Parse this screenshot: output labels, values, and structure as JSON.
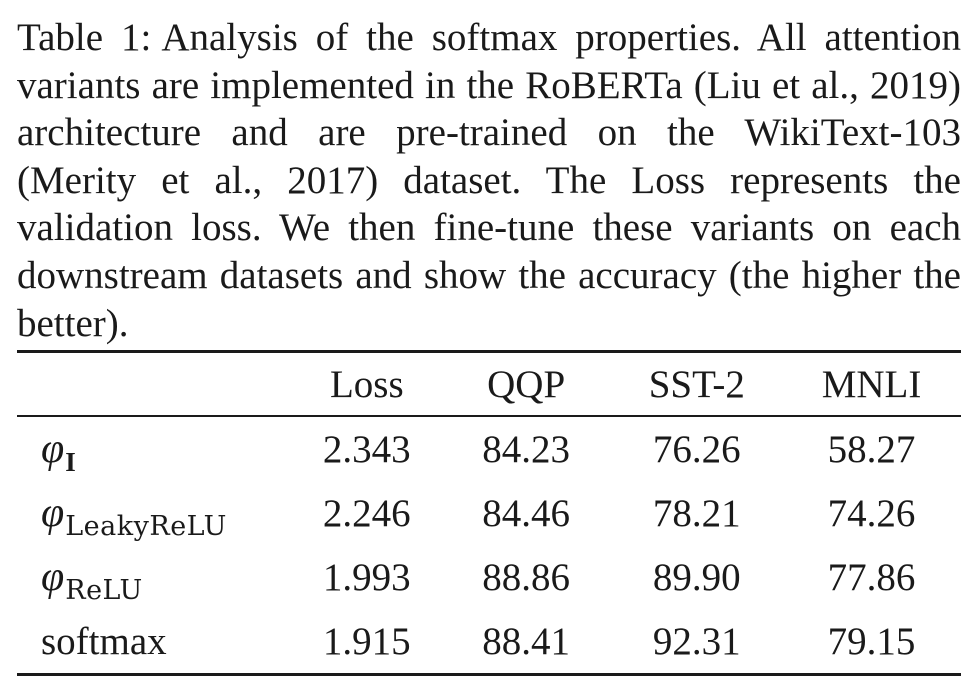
{
  "caption": {
    "label": "Table 1:",
    "text": "Analysis of the softmax properties. All at­tention variants are implemented in the RoBERTa (Liu et al., 2019) architecture and are pre-trained on the WikiText-103 (Merity et al., 2017) dataset. The Loss represents the validation loss. We then fine-tune these variants on each downstream datasets and show the ac­curacy (the higher the better)."
  },
  "table": {
    "headers": [
      "",
      "Loss",
      "QQP",
      "SST-2",
      "MNLI"
    ],
    "rows": [
      {
        "symbol": "φ",
        "subscript": "I",
        "cells": [
          "2.343",
          "84.23",
          "76.26",
          "58.27"
        ]
      },
      {
        "symbol": "φ",
        "subscript": "LeakyReLU",
        "cells": [
          "2.246",
          "84.46",
          "78.21",
          "74.26"
        ]
      },
      {
        "symbol": "φ",
        "subscript": "ReLU",
        "cells": [
          "1.993",
          "88.86",
          "89.90",
          "77.86"
        ]
      },
      {
        "label": "softmax",
        "cells": [
          "1.915",
          "88.41",
          "92.31",
          "79.15"
        ]
      }
    ]
  }
}
